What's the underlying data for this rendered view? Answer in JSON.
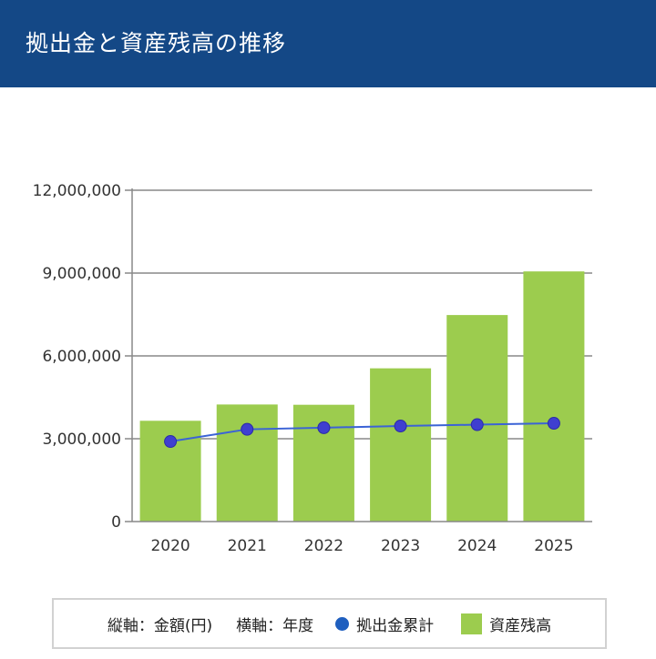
{
  "header": {
    "title": "拠出金と資産残高の推移"
  },
  "chart_data": {
    "type": "bar",
    "categories": [
      "2020",
      "2021",
      "2022",
      "2023",
      "2024",
      "2025"
    ],
    "series": [
      {
        "name": "資産残高",
        "kind": "bar",
        "color": "#9ccc4e",
        "values": [
          3650000,
          4240000,
          4230000,
          5550000,
          7480000,
          9060000
        ]
      },
      {
        "name": "拠出金累計",
        "kind": "line",
        "color": "#1f5fbf",
        "values": [
          2900000,
          3340000,
          3400000,
          3460000,
          3510000,
          3560000
        ]
      }
    ],
    "ylim": [
      0,
      12000000
    ],
    "yticks": [
      "0",
      "3,000,000",
      "6,000,000",
      "9,000,000",
      "12,000,000"
    ],
    "grid": true,
    "legend_position": "bottom"
  },
  "legend": {
    "vertical_axis": "縦軸：金額(円)",
    "horizontal_axis": "横軸：年度",
    "line_series": "拠出金累計",
    "bar_series": "資産残高"
  }
}
